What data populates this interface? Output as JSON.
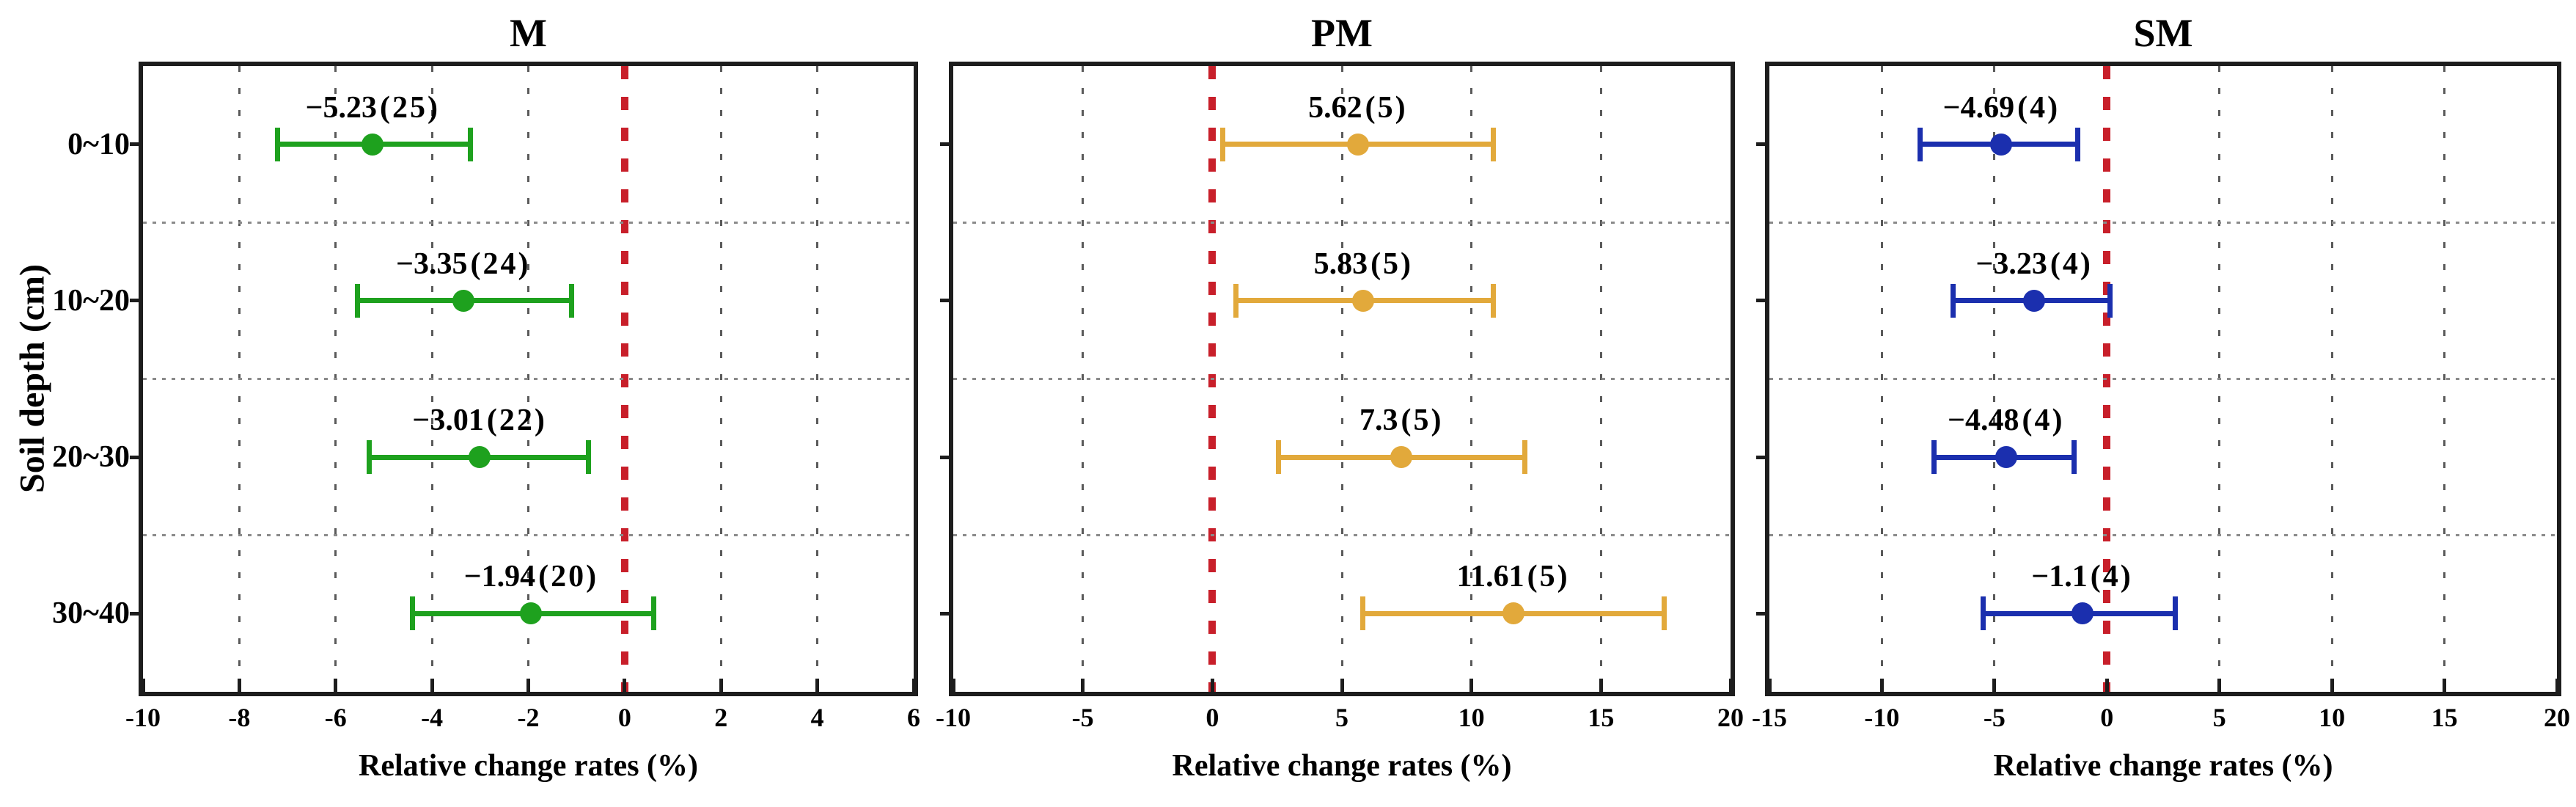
{
  "figure": {
    "y_axis_title": "Soil depth (cm)",
    "x_axis_title": "Relative change rates (%)",
    "depth_categories": [
      "0~10",
      "10~20",
      "20~30",
      "30~40"
    ]
  },
  "colors": {
    "zero_line": "#c81f2a",
    "gridline": "#5a5a5a",
    "separator": "#8a8a8a",
    "axis": "#1d1d1d",
    "text": "#000000",
    "series_m": "#1ea11e",
    "series_pm": "#e2a93b",
    "series_sm": "#1b2fae"
  },
  "chart_data": [
    {
      "type": "scatter",
      "title": "M",
      "color": "#1ea11e",
      "xlabel": "Relative change rates (%)",
      "xlim": [
        -10,
        6
      ],
      "xticks": [
        -10,
        -8,
        -6,
        -4,
        -2,
        0,
        2,
        4,
        6
      ],
      "zero_line_x": 0,
      "grid": true,
      "points": [
        {
          "category": "0~10",
          "mean": -5.23,
          "n": 25,
          "ci_low": -7.2,
          "ci_high": -3.2,
          "label_value": "−5.23",
          "label_count": "(25)"
        },
        {
          "category": "10~20",
          "mean": -3.35,
          "n": 24,
          "ci_low": -5.55,
          "ci_high": -1.1,
          "label_value": "−3.35",
          "label_count": "(24)"
        },
        {
          "category": "20~30",
          "mean": -3.01,
          "n": 22,
          "ci_low": -5.3,
          "ci_high": -0.75,
          "label_value": "−3.01",
          "label_count": "(22)"
        },
        {
          "category": "30~40",
          "mean": -1.94,
          "n": 20,
          "ci_low": -4.4,
          "ci_high": 0.6,
          "label_value": "−1.94",
          "label_count": "(20)"
        }
      ]
    },
    {
      "type": "scatter",
      "title": "PM",
      "color": "#e2a93b",
      "xlabel": "Relative change rates (%)",
      "xlim": [
        -10,
        20
      ],
      "xticks": [
        -10,
        -5,
        0,
        5,
        10,
        15,
        20
      ],
      "zero_line_x": 0,
      "grid": true,
      "points": [
        {
          "category": "0~10",
          "mean": 5.62,
          "n": 5,
          "ci_low": 0.4,
          "ci_high": 10.85,
          "label_value": "5.62",
          "label_count": "(5)"
        },
        {
          "category": "10~20",
          "mean": 5.83,
          "n": 5,
          "ci_low": 0.9,
          "ci_high": 10.85,
          "label_value": "5.83",
          "label_count": "(5)"
        },
        {
          "category": "20~30",
          "mean": 7.3,
          "n": 5,
          "ci_low": 2.55,
          "ci_high": 12.05,
          "label_value": "7.3",
          "label_count": "(5)"
        },
        {
          "category": "30~40",
          "mean": 11.61,
          "n": 5,
          "ci_low": 5.8,
          "ci_high": 17.45,
          "label_value": "11.61",
          "label_count": "(5)"
        }
      ]
    },
    {
      "type": "scatter",
      "title": "SM",
      "color": "#1b2fae",
      "xlabel": "Relative change rates (%)",
      "xlim": [
        -15,
        20
      ],
      "xticks": [
        -15,
        -10,
        -5,
        0,
        5,
        10,
        15,
        20
      ],
      "zero_line_x": 0,
      "grid": true,
      "points": [
        {
          "category": "0~10",
          "mean": -4.69,
          "n": 4,
          "ci_low": -8.3,
          "ci_high": -1.3,
          "label_value": "−4.69",
          "label_count": "(4)"
        },
        {
          "category": "10~20",
          "mean": -3.23,
          "n": 4,
          "ci_low": -6.85,
          "ci_high": 0.15,
          "label_value": "−3.23",
          "label_count": "(4)"
        },
        {
          "category": "20~30",
          "mean": -4.48,
          "n": 4,
          "ci_low": -7.7,
          "ci_high": -1.45,
          "label_value": "−4.48",
          "label_count": "(4)"
        },
        {
          "category": "30~40",
          "mean": -1.1,
          "n": 4,
          "ci_low": -5.5,
          "ci_high": 3.05,
          "label_value": "−1.1",
          "label_count": "(4)"
        }
      ]
    }
  ]
}
